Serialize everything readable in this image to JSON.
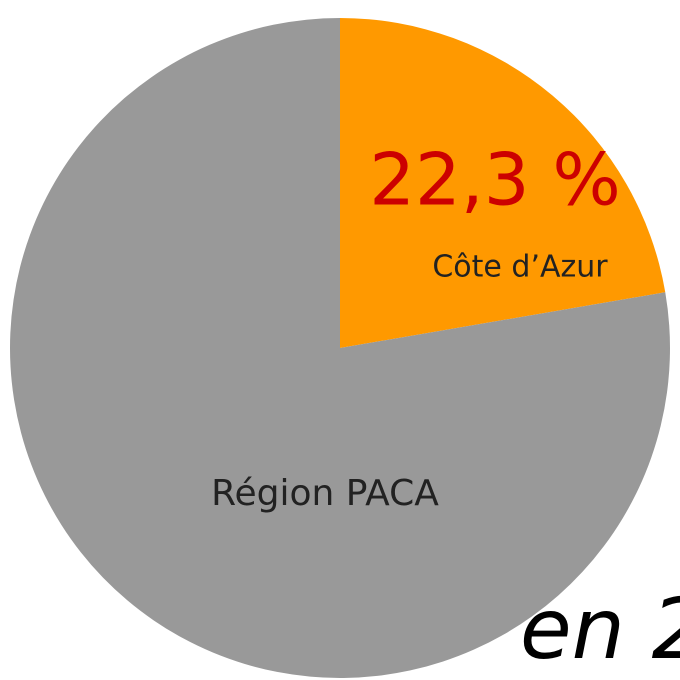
{
  "chart_data": {
    "type": "pie",
    "categories": [
      "Côte d’Azur",
      "Région PACA"
    ],
    "values": [
      22.3,
      77.7
    ],
    "value_labels": [
      "22,3 %",
      null
    ],
    "colors": [
      "#ff9900",
      "#999999"
    ],
    "annotation": "en 2"
  }
}
